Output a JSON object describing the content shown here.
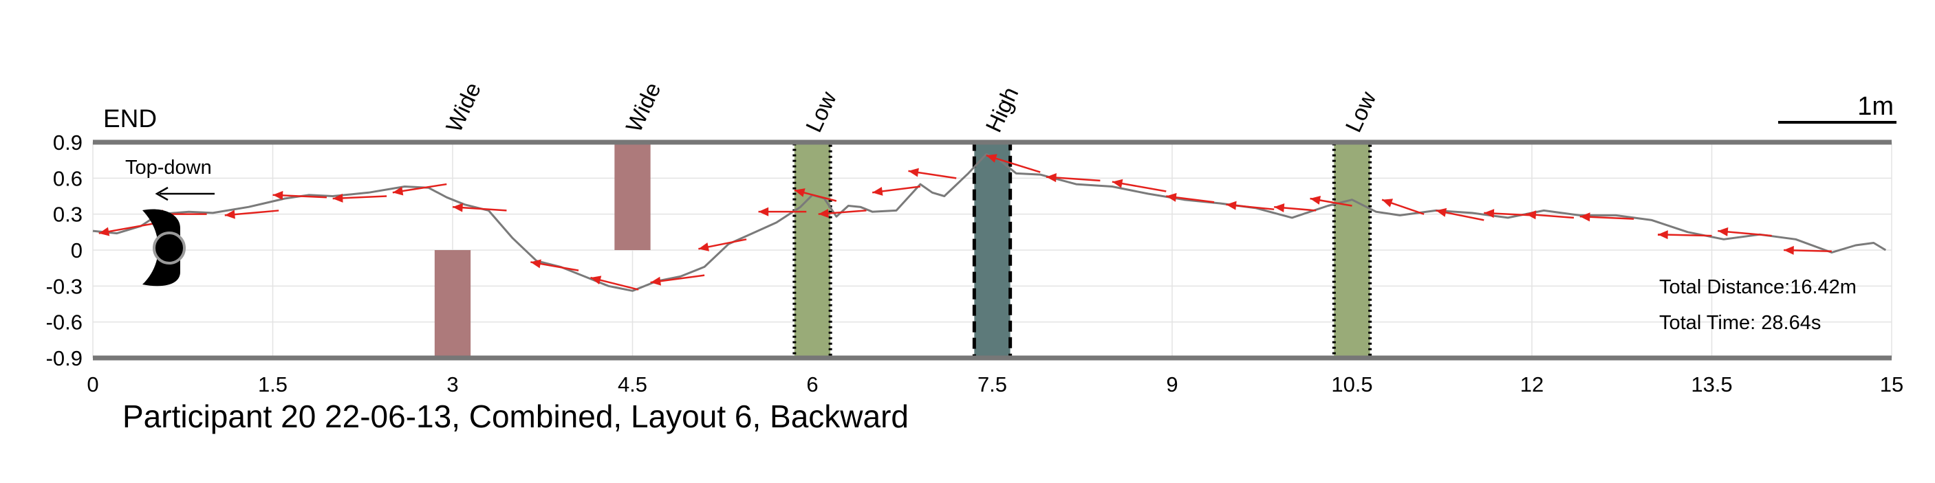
{
  "chart_data": {
    "type": "line",
    "title": "Participant 20 22-06-13, Combined, Layout 6, Backward",
    "end_label": "END",
    "view_label": "Top-down",
    "scale_label": "1m",
    "xlim": [
      0,
      15
    ],
    "ylim": [
      -0.9,
      0.9
    ],
    "x_ticks": [
      0,
      1.5,
      3,
      4.5,
      6,
      7.5,
      9,
      10.5,
      12,
      13.5,
      15
    ],
    "x_tick_labels": [
      "0",
      "1.5",
      "3",
      "4.5",
      "6",
      "7.5",
      "9",
      "10.5",
      "12",
      "13.5",
      "15"
    ],
    "y_ticks": [
      0.9,
      0.6,
      0.3,
      0,
      -0.3,
      -0.6,
      -0.9
    ],
    "y_tick_labels": [
      "0.9",
      "0.6",
      "0.3",
      "0",
      "-0.3",
      "-0.6",
      "-0.9"
    ],
    "grid": true,
    "stats": [
      {
        "label": "Total Distance:",
        "value": "16.42m"
      },
      {
        "label": "Total Time:",
        "value": "28.64s"
      }
    ],
    "obstacles": [
      {
        "label": "Wide",
        "kind": "wide",
        "x0": 2.85,
        "x1": 3.15,
        "y0": -0.9,
        "y1": 0.0,
        "color": "#ad7a7b"
      },
      {
        "label": "Wide",
        "kind": "wide",
        "x0": 4.35,
        "x1": 4.65,
        "y0": 0.0,
        "y1": 0.9,
        "color": "#ad7a7b"
      },
      {
        "label": "Low",
        "kind": "low",
        "x0": 5.85,
        "x1": 6.15,
        "y0": -0.9,
        "y1": 0.9,
        "color": "#99ab78",
        "border": "dotted"
      },
      {
        "label": "High",
        "kind": "high",
        "x0": 7.35,
        "x1": 7.65,
        "y0": -0.9,
        "y1": 0.9,
        "color": "#5d7a7a",
        "border": "dashed"
      },
      {
        "label": "Low",
        "kind": "low",
        "x0": 10.35,
        "x1": 10.65,
        "y0": -0.9,
        "y1": 0.9,
        "color": "#99ab78",
        "border": "dotted"
      }
    ],
    "path": {
      "x": [
        0.0,
        0.2,
        0.4,
        0.55,
        0.8,
        1.0,
        1.3,
        1.6,
        1.8,
        2.0,
        2.3,
        2.6,
        2.8,
        2.95,
        3.1,
        3.3,
        3.5,
        3.7,
        3.9,
        4.1,
        4.3,
        4.5,
        4.7,
        4.9,
        5.1,
        5.3,
        5.5,
        5.7,
        5.9,
        6.0,
        6.1,
        6.2,
        6.3,
        6.4,
        6.5,
        6.7,
        6.9,
        7.0,
        7.1,
        7.3,
        7.45,
        7.55,
        7.7,
        7.9,
        8.2,
        8.5,
        8.8,
        9.1,
        9.4,
        9.7,
        10.0,
        10.3,
        10.5,
        10.7,
        10.9,
        11.2,
        11.5,
        11.8,
        12.1,
        12.4,
        12.7,
        13.0,
        13.3,
        13.6,
        13.9,
        14.2,
        14.5,
        14.7,
        14.85,
        14.95
      ],
      "y": [
        0.16,
        0.14,
        0.2,
        0.3,
        0.32,
        0.31,
        0.36,
        0.43,
        0.46,
        0.45,
        0.48,
        0.53,
        0.52,
        0.44,
        0.38,
        0.33,
        0.1,
        -0.09,
        -0.14,
        -0.22,
        -0.3,
        -0.34,
        -0.26,
        -0.22,
        -0.14,
        0.05,
        0.14,
        0.23,
        0.36,
        0.46,
        0.43,
        0.28,
        0.37,
        0.36,
        0.32,
        0.33,
        0.55,
        0.48,
        0.45,
        0.64,
        0.8,
        0.76,
        0.64,
        0.63,
        0.55,
        0.53,
        0.47,
        0.42,
        0.39,
        0.35,
        0.27,
        0.37,
        0.42,
        0.32,
        0.29,
        0.33,
        0.31,
        0.27,
        0.33,
        0.29,
        0.29,
        0.25,
        0.15,
        0.09,
        0.13,
        0.09,
        -0.02,
        0.04,
        0.06,
        0.0
      ]
    },
    "arrows": [
      {
        "x": 0.5,
        "y": 0.22,
        "dx": -0.45,
        "dy": -0.08
      },
      {
        "x": 0.95,
        "y": 0.3,
        "dx": -0.45,
        "dy": 0.0
      },
      {
        "x": 1.55,
        "y": 0.33,
        "dx": -0.45,
        "dy": -0.04
      },
      {
        "x": 1.95,
        "y": 0.44,
        "dx": -0.45,
        "dy": 0.02
      },
      {
        "x": 2.45,
        "y": 0.45,
        "dx": -0.45,
        "dy": -0.02
      },
      {
        "x": 2.95,
        "y": 0.55,
        "dx": -0.45,
        "dy": -0.07
      },
      {
        "x": 3.45,
        "y": 0.33,
        "dx": -0.45,
        "dy": 0.03
      },
      {
        "x": 4.05,
        "y": -0.17,
        "dx": -0.4,
        "dy": 0.07
      },
      {
        "x": 4.55,
        "y": -0.33,
        "dx": -0.4,
        "dy": 0.1
      },
      {
        "x": 5.1,
        "y": -0.21,
        "dx": -0.45,
        "dy": -0.06
      },
      {
        "x": 5.45,
        "y": 0.09,
        "dx": -0.4,
        "dy": -0.08
      },
      {
        "x": 5.95,
        "y": 0.32,
        "dx": -0.4,
        "dy": 0.0
      },
      {
        "x": 6.2,
        "y": 0.41,
        "dx": -0.35,
        "dy": 0.09
      },
      {
        "x": 6.45,
        "y": 0.33,
        "dx": -0.4,
        "dy": -0.03
      },
      {
        "x": 6.9,
        "y": 0.53,
        "dx": -0.4,
        "dy": -0.05
      },
      {
        "x": 7.2,
        "y": 0.6,
        "dx": -0.4,
        "dy": 0.06
      },
      {
        "x": 7.9,
        "y": 0.65,
        "dx": -0.45,
        "dy": 0.14
      },
      {
        "x": 8.4,
        "y": 0.58,
        "dx": -0.45,
        "dy": 0.03
      },
      {
        "x": 8.95,
        "y": 0.49,
        "dx": -0.45,
        "dy": 0.08
      },
      {
        "x": 9.35,
        "y": 0.4,
        "dx": -0.4,
        "dy": 0.05
      },
      {
        "x": 9.85,
        "y": 0.34,
        "dx": -0.4,
        "dy": 0.04
      },
      {
        "x": 10.2,
        "y": 0.33,
        "dx": -0.35,
        "dy": 0.03
      },
      {
        "x": 10.5,
        "y": 0.37,
        "dx": -0.35,
        "dy": 0.06
      },
      {
        "x": 11.1,
        "y": 0.3,
        "dx": -0.35,
        "dy": 0.12
      },
      {
        "x": 11.6,
        "y": 0.25,
        "dx": -0.4,
        "dy": 0.08
      },
      {
        "x": 12.0,
        "y": 0.29,
        "dx": -0.4,
        "dy": 0.02
      },
      {
        "x": 12.35,
        "y": 0.27,
        "dx": -0.4,
        "dy": 0.03
      },
      {
        "x": 12.85,
        "y": 0.26,
        "dx": -0.45,
        "dy": 0.02
      },
      {
        "x": 13.5,
        "y": 0.12,
        "dx": -0.45,
        "dy": 0.01
      },
      {
        "x": 14.0,
        "y": 0.12,
        "dx": -0.45,
        "dy": 0.04
      },
      {
        "x": 14.5,
        "y": -0.01,
        "dx": -0.4,
        "dy": 0.01
      }
    ],
    "colors": {
      "path": "#7a7a7a",
      "arrow": "#e4211c",
      "grid": "#e3e3e3",
      "border": "#777777"
    }
  }
}
